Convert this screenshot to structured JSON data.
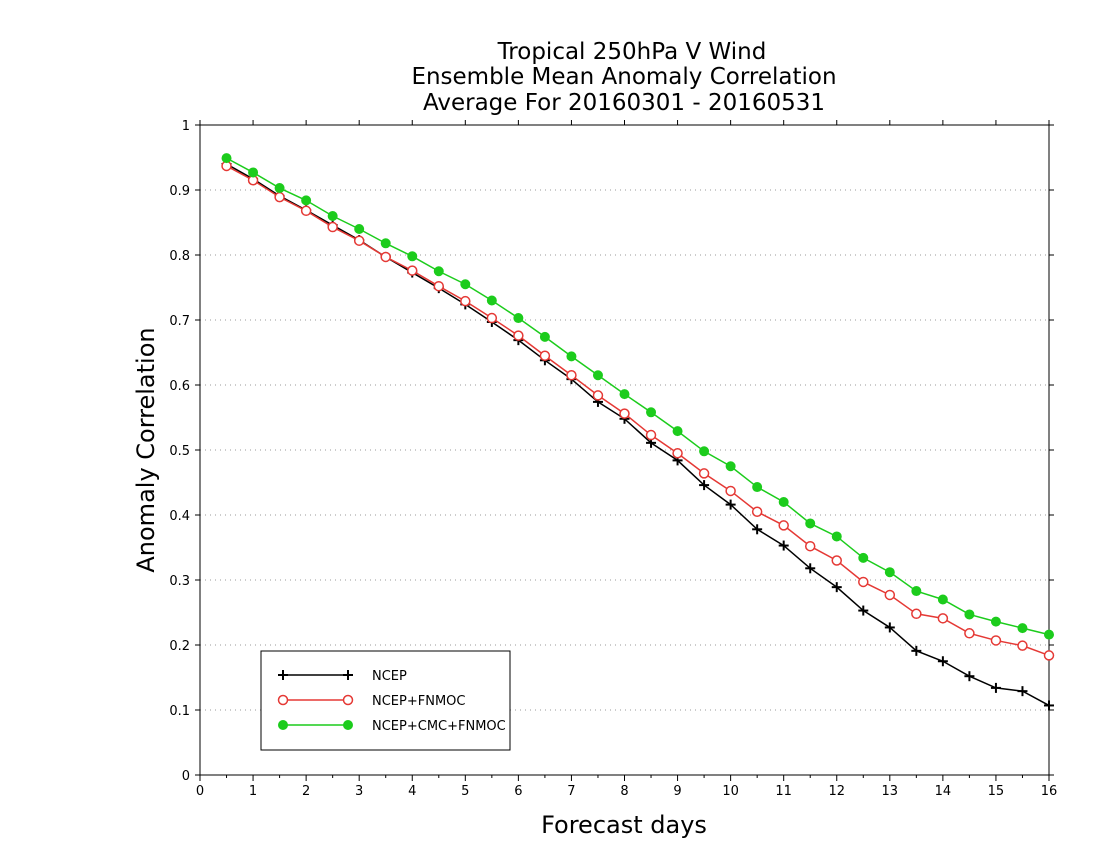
{
  "chart_data": {
    "type": "line",
    "title_lines": [
      "Tropical 250hPa V Wind",
      "Ensemble Mean Anomaly Correlation",
      "Average For 20160301 - 20160531"
    ],
    "xlabel": "Forecast days",
    "ylabel": "Anomaly Correlation",
    "xlim": [
      0,
      16
    ],
    "ylim": [
      0,
      1
    ],
    "x_ticks": [
      "0",
      "1",
      "2",
      "3",
      "4",
      "5",
      "6",
      "7",
      "8",
      "9",
      "10",
      "11",
      "12",
      "13",
      "14",
      "15",
      "16"
    ],
    "y_ticks": [
      "0",
      "0.1",
      "0.2",
      "0.3",
      "0.4",
      "0.5",
      "0.6",
      "0.7",
      "0.8",
      "0.9",
      "1"
    ],
    "grid": "dotted horizontal",
    "legend_position": "bottom-left",
    "x": [
      0.5,
      1,
      1.5,
      2,
      2.5,
      3,
      3.5,
      4,
      4.5,
      5,
      5.5,
      6,
      6.5,
      7,
      7.5,
      8,
      8.5,
      9,
      9.5,
      10,
      10.5,
      11,
      11.5,
      12,
      12.5,
      13,
      13.5,
      14,
      14.5,
      15,
      15.5,
      16
    ],
    "series": [
      {
        "name": "NCEP",
        "color": "#000000",
        "marker": "plus",
        "values": [
          0.94,
          0.917,
          0.891,
          0.869,
          0.846,
          0.823,
          0.797,
          0.773,
          0.749,
          0.724,
          0.697,
          0.669,
          0.638,
          0.609,
          0.574,
          0.548,
          0.511,
          0.484,
          0.446,
          0.416,
          0.378,
          0.353,
          0.318,
          0.289,
          0.253,
          0.227,
          0.191,
          0.175,
          0.152,
          0.134,
          0.129,
          0.107
        ]
      },
      {
        "name": "NCEP+FNMOC",
        "color": "#e53935",
        "marker": "open-circle",
        "values": [
          0.937,
          0.915,
          0.889,
          0.868,
          0.843,
          0.822,
          0.797,
          0.776,
          0.752,
          0.729,
          0.703,
          0.676,
          0.645,
          0.615,
          0.584,
          0.556,
          0.523,
          0.495,
          0.464,
          0.437,
          0.405,
          0.384,
          0.352,
          0.33,
          0.297,
          0.277,
          0.248,
          0.241,
          0.218,
          0.207,
          0.199,
          0.184
        ]
      },
      {
        "name": "NCEP+CMC+FNMOC",
        "color": "#1ccc1c",
        "marker": "filled-circle",
        "values": [
          0.949,
          0.927,
          0.903,
          0.884,
          0.86,
          0.84,
          0.818,
          0.798,
          0.775,
          0.755,
          0.73,
          0.703,
          0.674,
          0.644,
          0.615,
          0.586,
          0.558,
          0.529,
          0.498,
          0.475,
          0.443,
          0.42,
          0.387,
          0.367,
          0.334,
          0.312,
          0.283,
          0.27,
          0.247,
          0.236,
          0.226,
          0.216
        ]
      }
    ]
  }
}
